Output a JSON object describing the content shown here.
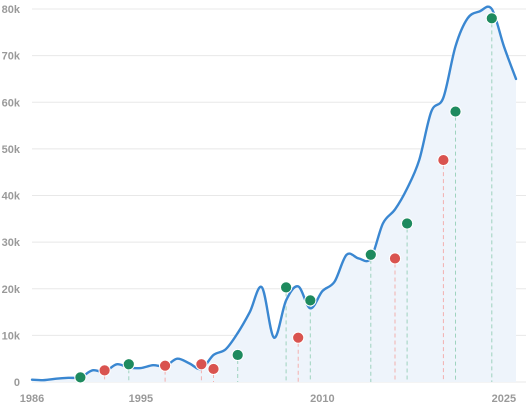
{
  "chart_data": {
    "type": "area",
    "title": "",
    "xlabel": "",
    "ylabel": "",
    "xlim": [
      1986,
      2026
    ],
    "ylim": [
      0,
      80000
    ],
    "grid": true,
    "legend": "none",
    "x_ticks": [
      1986,
      1995,
      2010,
      2025
    ],
    "x_tick_labels": [
      "1986",
      "1995",
      "2010",
      "2025"
    ],
    "y_ticks": [
      0,
      10000,
      20000,
      30000,
      40000,
      50000,
      60000,
      70000,
      80000
    ],
    "y_tick_labels": [
      "0",
      "10k",
      "20k",
      "30k",
      "40k",
      "50k",
      "60k",
      "70k",
      "80k"
    ],
    "colors": {
      "line": "#3a87d1",
      "area": "#eef4fb",
      "up_marker": "#1e8a5e",
      "down_marker": "#d9534f",
      "up_dash": "#9fd3bf",
      "down_dash": "#f3b0ae",
      "grid": "#e8e8e8",
      "tick_text": "#9a9a9a"
    },
    "series": [
      {
        "x": [
          1986,
          1987,
          1988,
          1989,
          1990,
          1991,
          1992,
          1993,
          1994,
          1995,
          1996,
          1997,
          1998,
          1999,
          2000,
          2001,
          2002,
          2003,
          2004,
          2005,
          2006,
          2007,
          2008,
          2009,
          2010,
          2011,
          2012,
          2013,
          2014,
          2015,
          2016,
          2017,
          2018,
          2019,
          2020,
          2021,
          2022,
          2023,
          2024,
          2025,
          2026
        ],
        "y": [
          500,
          400,
          700,
          900,
          1000,
          2500,
          2200,
          3800,
          3100,
          3000,
          3600,
          3400,
          5000,
          4000,
          2800,
          5800,
          7000,
          10500,
          15000,
          20300,
          9500,
          17500,
          20500,
          15800,
          19500,
          21500,
          27300,
          26500,
          26500,
          34000,
          37000,
          41500,
          47600,
          58000,
          61000,
          72000,
          78000,
          79500,
          80000,
          72000,
          65000
        ]
      }
    ],
    "markers": [
      {
        "x": 1990,
        "y": 1000,
        "direction": "up"
      },
      {
        "x": 1992,
        "y": 2500,
        "direction": "down"
      },
      {
        "x": 1994,
        "y": 3800,
        "direction": "up"
      },
      {
        "x": 1997,
        "y": 3500,
        "direction": "down"
      },
      {
        "x": 2000,
        "y": 3800,
        "direction": "down"
      },
      {
        "x": 2001,
        "y": 2800,
        "direction": "down"
      },
      {
        "x": 2003,
        "y": 5800,
        "direction": "up"
      },
      {
        "x": 2007,
        "y": 20300,
        "direction": "up"
      },
      {
        "x": 2008,
        "y": 9500,
        "direction": "down"
      },
      {
        "x": 2009,
        "y": 17500,
        "direction": "up"
      },
      {
        "x": 2014,
        "y": 27300,
        "direction": "up"
      },
      {
        "x": 2016,
        "y": 26500,
        "direction": "down"
      },
      {
        "x": 2017,
        "y": 34000,
        "direction": "up"
      },
      {
        "x": 2020,
        "y": 47600,
        "direction": "down"
      },
      {
        "x": 2021,
        "y": 58000,
        "direction": "up"
      },
      {
        "x": 2024,
        "y": 78000,
        "direction": "up"
      }
    ]
  }
}
